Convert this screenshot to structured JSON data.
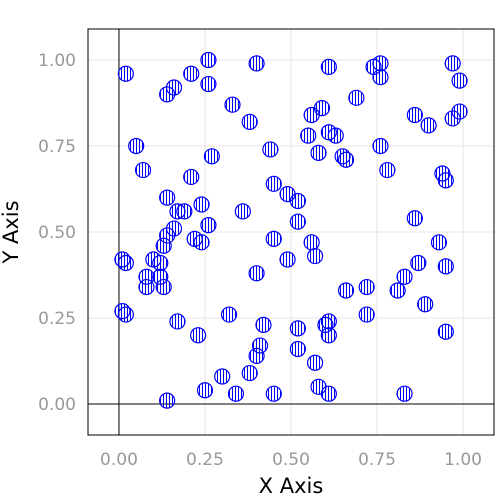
{
  "chart_data": {
    "type": "scatter",
    "title": "",
    "xlabel": "X Axis",
    "ylabel": "Y Axis",
    "xlim": [
      -0.09,
      1.09
    ],
    "ylim": [
      -0.09,
      1.09
    ],
    "x_ticks": [
      0.0,
      0.25,
      0.5,
      0.75,
      1.0
    ],
    "y_ticks": [
      0.0,
      0.25,
      0.5,
      0.75,
      1.0
    ],
    "x_tick_labels": [
      "0.00",
      "0.25",
      "0.50",
      "0.75",
      "1.00"
    ],
    "y_tick_labels": [
      "0.00",
      "0.25",
      "0.50",
      "0.75",
      "1.00"
    ],
    "grid": true,
    "zero_lines": true,
    "marker": "circle-vertical-hatch",
    "colors": {
      "marker": "#0000ff",
      "grid": "#e6e6e6",
      "frame": "#000000",
      "tick_label": "#999999"
    },
    "series": [
      {
        "points": [
          [
            0.02,
            0.96
          ],
          [
            0.14,
            0.9
          ],
          [
            0.16,
            0.92
          ],
          [
            0.21,
            0.96
          ],
          [
            0.26,
            1.0
          ],
          [
            0.26,
            0.93
          ],
          [
            0.4,
            0.99
          ],
          [
            0.61,
            0.98
          ],
          [
            0.74,
            0.98
          ],
          [
            0.76,
            0.99
          ],
          [
            0.76,
            0.95
          ],
          [
            0.97,
            0.99
          ],
          [
            0.99,
            0.94
          ],
          [
            0.05,
            0.75
          ],
          [
            0.07,
            0.68
          ],
          [
            0.33,
            0.87
          ],
          [
            0.38,
            0.82
          ],
          [
            0.27,
            0.72
          ],
          [
            0.44,
            0.74
          ],
          [
            0.56,
            0.84
          ],
          [
            0.59,
            0.86
          ],
          [
            0.55,
            0.78
          ],
          [
            0.61,
            0.79
          ],
          [
            0.63,
            0.78
          ],
          [
            0.58,
            0.73
          ],
          [
            0.65,
            0.72
          ],
          [
            0.66,
            0.71
          ],
          [
            0.69,
            0.89
          ],
          [
            0.76,
            0.75
          ],
          [
            0.78,
            0.68
          ],
          [
            0.86,
            0.84
          ],
          [
            0.9,
            0.81
          ],
          [
            0.97,
            0.83
          ],
          [
            0.99,
            0.85
          ],
          [
            0.94,
            0.67
          ],
          [
            0.95,
            0.65
          ],
          [
            0.21,
            0.66
          ],
          [
            0.14,
            0.6
          ],
          [
            0.17,
            0.56
          ],
          [
            0.19,
            0.56
          ],
          [
            0.24,
            0.58
          ],
          [
            0.26,
            0.52
          ],
          [
            0.36,
            0.56
          ],
          [
            0.14,
            0.49
          ],
          [
            0.16,
            0.51
          ],
          [
            0.13,
            0.46
          ],
          [
            0.22,
            0.48
          ],
          [
            0.24,
            0.47
          ],
          [
            0.45,
            0.64
          ],
          [
            0.49,
            0.61
          ],
          [
            0.52,
            0.59
          ],
          [
            0.52,
            0.53
          ],
          [
            0.45,
            0.48
          ],
          [
            0.56,
            0.47
          ],
          [
            0.57,
            0.43
          ],
          [
            0.49,
            0.42
          ],
          [
            0.4,
            0.38
          ],
          [
            0.01,
            0.42
          ],
          [
            0.02,
            0.41
          ],
          [
            0.1,
            0.42
          ],
          [
            0.12,
            0.41
          ],
          [
            0.08,
            0.37
          ],
          [
            0.08,
            0.34
          ],
          [
            0.12,
            0.37
          ],
          [
            0.13,
            0.34
          ],
          [
            0.01,
            0.27
          ],
          [
            0.02,
            0.26
          ],
          [
            0.17,
            0.24
          ],
          [
            0.23,
            0.2
          ],
          [
            0.32,
            0.26
          ],
          [
            0.42,
            0.23
          ],
          [
            0.41,
            0.17
          ],
          [
            0.4,
            0.14
          ],
          [
            0.52,
            0.22
          ],
          [
            0.52,
            0.16
          ],
          [
            0.6,
            0.23
          ],
          [
            0.61,
            0.24
          ],
          [
            0.61,
            0.2
          ],
          [
            0.57,
            0.12
          ],
          [
            0.66,
            0.33
          ],
          [
            0.72,
            0.34
          ],
          [
            0.72,
            0.26
          ],
          [
            0.81,
            0.33
          ],
          [
            0.83,
            0.37
          ],
          [
            0.87,
            0.41
          ],
          [
            0.86,
            0.54
          ],
          [
            0.93,
            0.47
          ],
          [
            0.95,
            0.4
          ],
          [
            0.89,
            0.29
          ],
          [
            0.95,
            0.21
          ],
          [
            0.3,
            0.08
          ],
          [
            0.25,
            0.04
          ],
          [
            0.34,
            0.03
          ],
          [
            0.38,
            0.09
          ],
          [
            0.45,
            0.03
          ],
          [
            0.58,
            0.05
          ],
          [
            0.61,
            0.03
          ],
          [
            0.14,
            0.01
          ],
          [
            0.83,
            0.03
          ]
        ]
      }
    ]
  }
}
